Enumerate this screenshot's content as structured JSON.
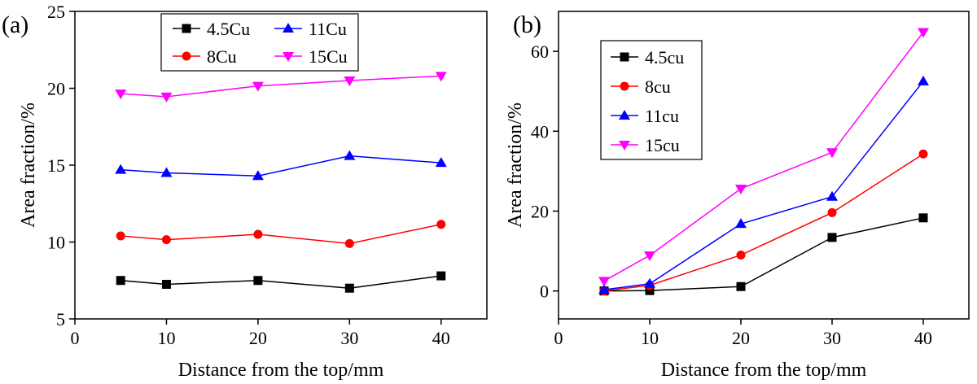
{
  "figure": {
    "panel_labels": [
      "(a)",
      "(b)"
    ]
  },
  "chart_data": [
    {
      "panel": "(a)",
      "type": "line",
      "xlabel": "Distance from the top/mm",
      "ylabel": "Area fraction/%",
      "xlim": [
        0,
        45
      ],
      "ylim": [
        5,
        25
      ],
      "xticks": [
        0,
        10,
        20,
        30,
        40
      ],
      "yticks": [
        5,
        10,
        15,
        20,
        25
      ],
      "x": [
        5,
        10,
        20,
        30,
        40
      ],
      "legend_position": "top-center",
      "legend_layout": "two-by-two",
      "series": [
        {
          "name": "4.5Cu",
          "color": "#000000",
          "marker": "square",
          "values": [
            7.5,
            7.25,
            7.5,
            7.0,
            7.8
          ]
        },
        {
          "name": "8Cu",
          "color": "#ff0000",
          "marker": "circle",
          "values": [
            10.4,
            10.15,
            10.5,
            9.9,
            11.15
          ]
        },
        {
          "name": "11Cu",
          "color": "#0000ff",
          "marker": "triangle-up",
          "values": [
            14.7,
            14.5,
            14.3,
            15.6,
            15.15
          ]
        },
        {
          "name": "15Cu",
          "color": "#ff00ff",
          "marker": "triangle-down",
          "values": [
            19.65,
            19.45,
            20.15,
            20.5,
            20.8
          ]
        }
      ]
    },
    {
      "panel": "(b)",
      "type": "line",
      "xlabel": "Distance from the top/mm",
      "ylabel": "Area fraction/%",
      "xlim": [
        0,
        45
      ],
      "ylim": [
        -7,
        70
      ],
      "xticks": [
        0,
        10,
        20,
        30,
        40
      ],
      "yticks": [
        0,
        20,
        40,
        60
      ],
      "x": [
        5,
        10,
        20,
        30,
        40
      ],
      "legend_position": "top-left",
      "legend_layout": "vertical",
      "series": [
        {
          "name": "4.5cu",
          "color": "#000000",
          "marker": "square",
          "values": [
            0.0,
            0.1,
            1.1,
            13.4,
            18.3
          ]
        },
        {
          "name": "8cu",
          "color": "#ff0000",
          "marker": "circle",
          "values": [
            0.0,
            1.4,
            9.0,
            19.6,
            34.3
          ]
        },
        {
          "name": "11cu",
          "color": "#0000ff",
          "marker": "triangle-up",
          "values": [
            0.3,
            1.8,
            16.8,
            23.6,
            52.5
          ]
        },
        {
          "name": "15cu",
          "color": "#ff00ff",
          "marker": "triangle-down",
          "values": [
            2.5,
            8.9,
            25.6,
            34.7,
            64.8
          ]
        }
      ]
    }
  ]
}
